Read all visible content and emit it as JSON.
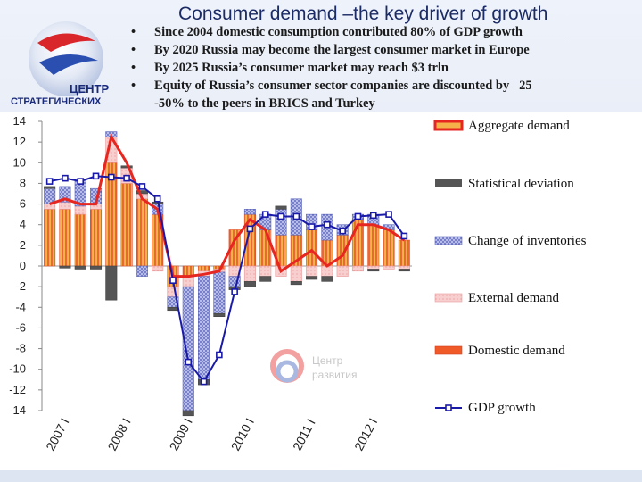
{
  "header": {
    "title": "Consumer demand –the key driver of growth",
    "bullets": [
      "Since 2004 domestic consumption contributed 80% of GDP growth",
      "By 2020 Russia may become the largest consumer market in Europe",
      "By 2025 Russia’s consumer market may reach $3 trln",
      "Equity of Russia’s consumer sector companies are discounted by   25"
    ],
    "bullet_continuation": "-50% to the peers in BRICS and Turkey",
    "bullet_symbol": "•"
  },
  "logo": {
    "main_text": "ЦЕНТР",
    "bottom_text": "СТРАТЕГИЧЕСКИХ"
  },
  "watermark": {
    "line1": "Центр",
    "line2": "развития"
  },
  "colors": {
    "aggregate": "#e62620",
    "statistical": "#555555",
    "inventories": "#8f98d4",
    "external": "#f4b4b4",
    "domestic": "#f05a28",
    "gdp": "#1a1aa8",
    "domestic_fill": "#f6b24a"
  },
  "chart_data": {
    "type": "bar",
    "ylim": [
      -14,
      14
    ],
    "yticks": [
      14,
      12,
      10,
      8,
      6,
      4,
      2,
      0,
      -2,
      -4,
      -6,
      -8,
      -10,
      -12,
      -14
    ],
    "xtick_labels": [
      "2007 I",
      "2008 I",
      "2009 I",
      "2010 I",
      "2011 I",
      "2012 I"
    ],
    "xtick_quarter_index": [
      0,
      4,
      8,
      12,
      16,
      20
    ],
    "legend": [
      {
        "key": "aggregate",
        "label": "Aggregate demand"
      },
      {
        "key": "statistical",
        "label": "Statistical deviation"
      },
      {
        "key": "inventories",
        "label": "Change of inventories"
      },
      {
        "key": "external",
        "label": "External demand"
      },
      {
        "key": "domestic",
        "label": "Domestic demand"
      },
      {
        "key": "gdp",
        "label": "GDP growth"
      }
    ],
    "quarters": 24,
    "domestic_demand": [
      5.5,
      5.5,
      5.0,
      5.5,
      10.0,
      8.0,
      6.5,
      5.0,
      -2.0,
      -1.0,
      -0.5,
      -0.3,
      3.5,
      5.0,
      3.5,
      3.0,
      3.0,
      3.5,
      2.5,
      3.0,
      4.5,
      4.0,
      3.5,
      2.5
    ],
    "external_demand": [
      0.5,
      0.7,
      0.8,
      0.5,
      2.5,
      1.5,
      0.5,
      -0.5,
      -1.0,
      -1.0,
      -0.5,
      -0.3,
      -1.0,
      -1.5,
      -1.0,
      -1.0,
      -1.5,
      -1.0,
      -1.0,
      -1.0,
      -0.5,
      -0.3,
      -0.3,
      -0.3
    ],
    "inventories": [
      1.5,
      1.5,
      2.5,
      1.5,
      0.5,
      0.0,
      -1.0,
      1.0,
      -1.0,
      -12.0,
      -10.0,
      -4.0,
      -1.0,
      0.5,
      1.5,
      2.5,
      3.5,
      1.5,
      2.5,
      1.0,
      0.5,
      1.0,
      0.5,
      0.0
    ],
    "statistical_deviation": [
      0.2,
      -0.2,
      -0.3,
      -0.3,
      -3.3,
      0.2,
      0.3,
      0.2,
      -0.3,
      -0.5,
      -0.5,
      -0.3,
      -0.3,
      -0.5,
      -0.5,
      0.3,
      -0.3,
      -0.3,
      -0.5,
      0.0,
      0.0,
      -0.2,
      0.0,
      -0.2
    ],
    "aggregate_demand": [
      6.0,
      6.5,
      6.0,
      6.0,
      12.5,
      10.0,
      6.5,
      5.5,
      -1.0,
      -1.0,
      -0.8,
      -0.5,
      2.5,
      4.5,
      3.5,
      -0.5,
      0.5,
      1.5,
      0.0,
      1.0,
      4.0,
      4.0,
      3.5,
      2.5
    ],
    "gdp_growth": [
      8.2,
      8.5,
      8.2,
      8.7,
      8.6,
      8.5,
      7.7,
      6.5,
      -1.4,
      -9.3,
      -11.2,
      -8.6,
      -2.5,
      3.6,
      5.0,
      4.8,
      4.8,
      3.8,
      4.0,
      3.4,
      4.8,
      4.9,
      5.0,
      2.9
    ]
  }
}
